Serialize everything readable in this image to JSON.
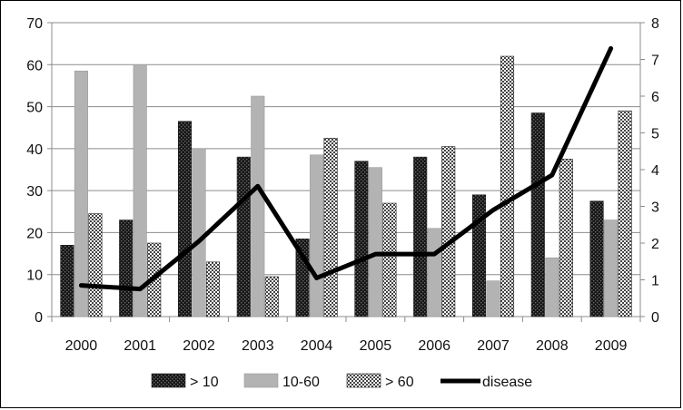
{
  "chart_data": {
    "type": "bar",
    "title": "",
    "xlabel": "",
    "ylabel": "",
    "categories": [
      "2000",
      "2001",
      "2002",
      "2003",
      "2004",
      "2005",
      "2006",
      "2007",
      "2008",
      "2009"
    ],
    "ylim": [
      0,
      70
    ],
    "y_ticks": [
      0,
      10,
      20,
      30,
      40,
      50,
      60,
      70
    ],
    "y2lim": [
      0,
      8
    ],
    "y2_ticks": [
      0,
      1,
      2,
      3,
      4,
      5,
      6,
      7,
      8
    ],
    "grid": "horizontal",
    "legend_position": "bottom",
    "series": [
      {
        "name": "> 10",
        "kind": "bar",
        "axis": "left",
        "pattern": "dark-dots",
        "color": "#2a2a2a",
        "values": [
          17,
          23,
          46.5,
          38,
          18.5,
          37,
          38,
          29,
          48.5,
          27.5
        ]
      },
      {
        "name": "10-60",
        "kind": "bar",
        "axis": "left",
        "pattern": "solid-gray",
        "color": "#b3b3b3",
        "values": [
          58.5,
          60,
          40,
          52.5,
          38.5,
          35.5,
          21,
          8.5,
          14,
          23
        ]
      },
      {
        "name": "> 60",
        "kind": "bar",
        "axis": "left",
        "pattern": "checker",
        "color": "#d9d9d9",
        "values": [
          24.5,
          17.5,
          13,
          9.5,
          42.5,
          27,
          40.5,
          62,
          37.5,
          49
        ]
      },
      {
        "name": "disease",
        "kind": "line",
        "axis": "right",
        "color": "#000000",
        "values": [
          0.85,
          0.75,
          2.05,
          3.55,
          1.05,
          1.7,
          1.7,
          2.9,
          3.85,
          7.3
        ]
      }
    ]
  }
}
